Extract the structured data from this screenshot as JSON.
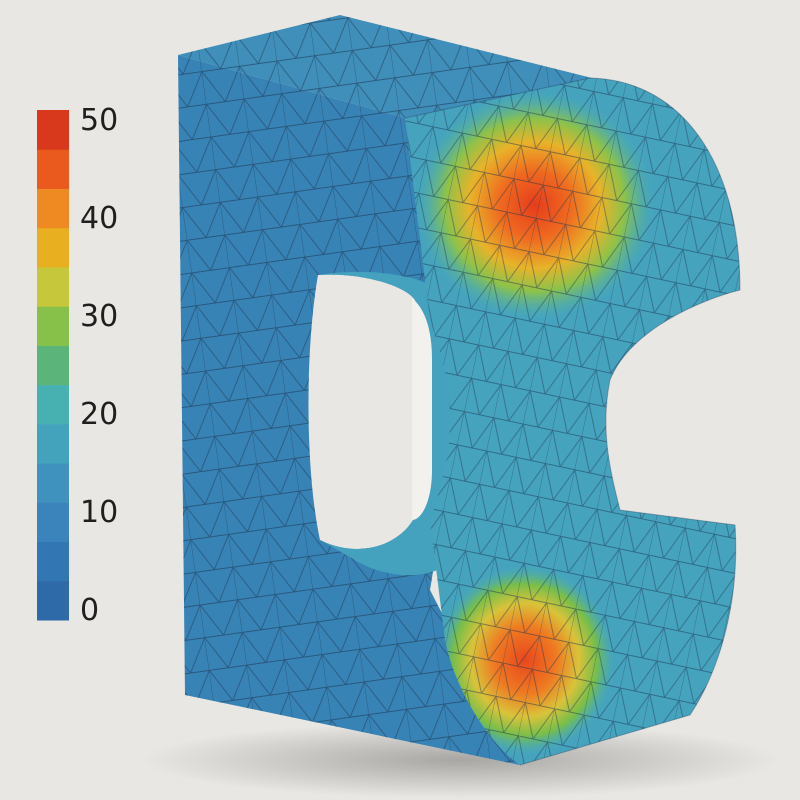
{
  "legend": {
    "ticks": [
      "50",
      "40",
      "30",
      "20",
      "10",
      "0"
    ],
    "tick_values": [
      50,
      40,
      30,
      20,
      10,
      0
    ],
    "colors": [
      "#2f6aa8",
      "#3276b3",
      "#3a84bb",
      "#3f92be",
      "#43a3bd",
      "#47b1b1",
      "#5bb57b",
      "#87c14a",
      "#c7c73b",
      "#e8b021",
      "#ef8a22",
      "#ea5a1e",
      "#d8381c"
    ]
  },
  "model": {
    "base_color": "#3c8fbc",
    "hotspots": [
      {
        "region": "upper-right-side-face",
        "level": 50
      },
      {
        "region": "lower-right-side-face",
        "level": 45
      }
    ]
  }
}
